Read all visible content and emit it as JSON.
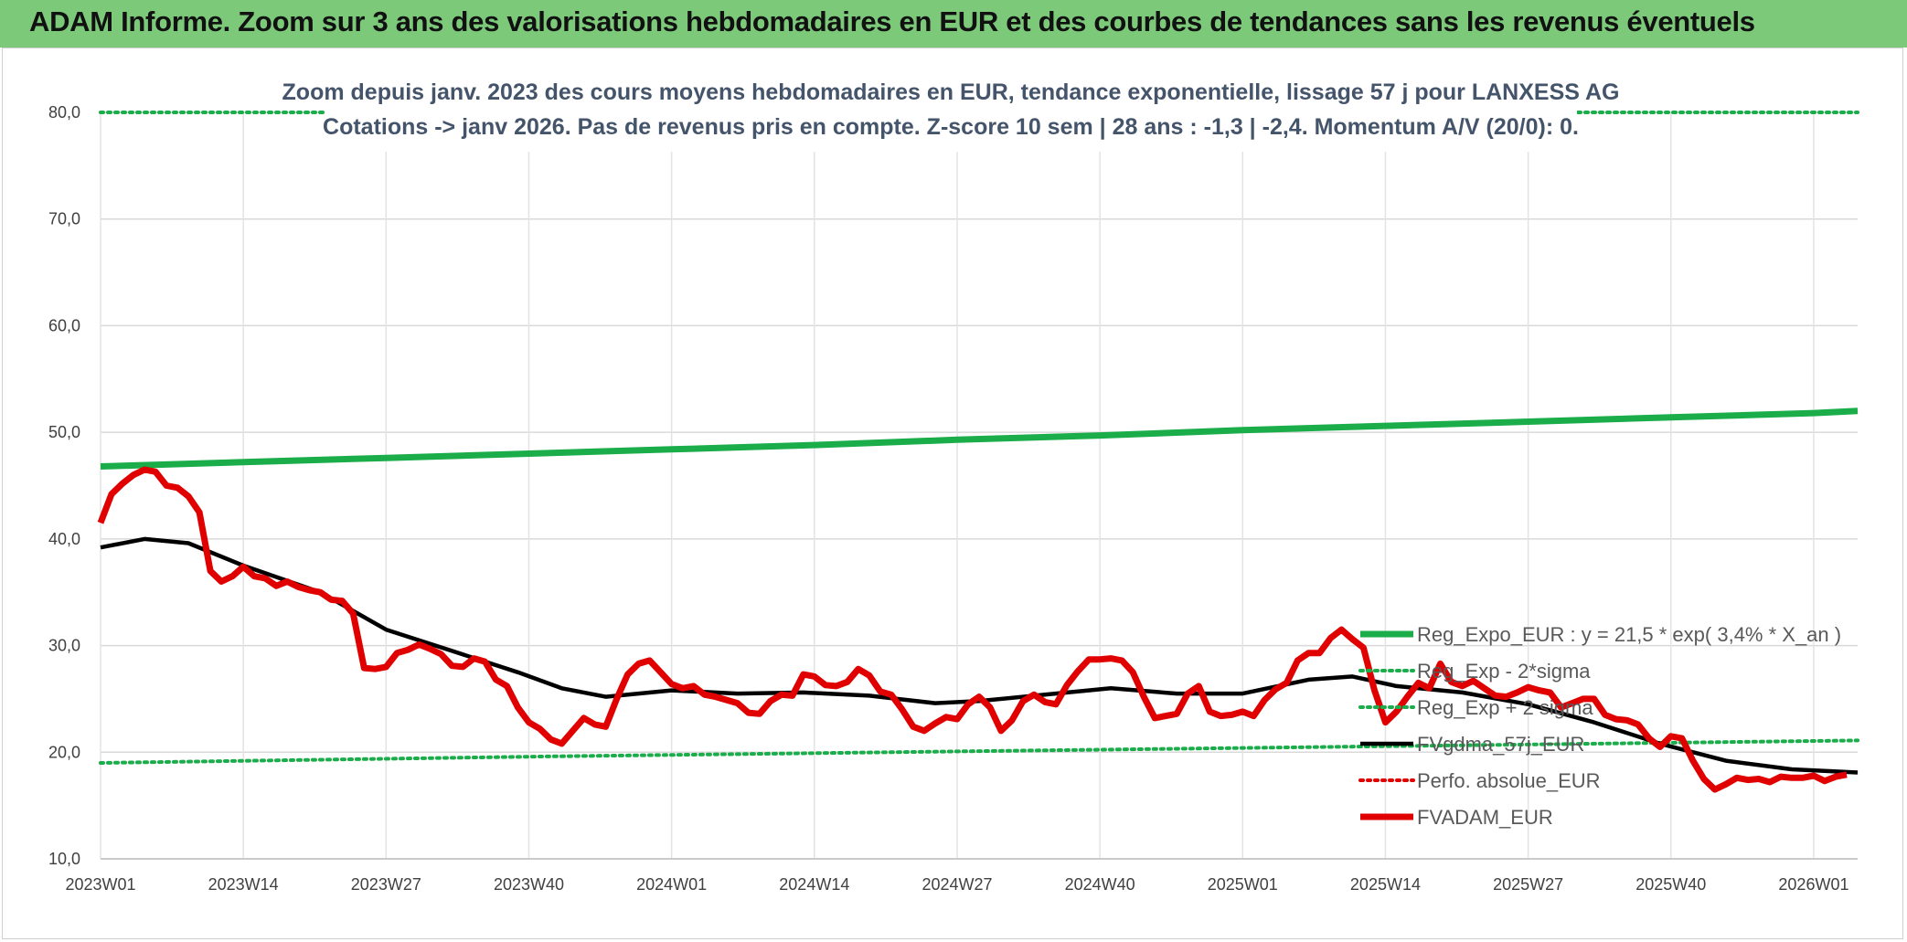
{
  "banner": {
    "title": "ADAM Informe. Zoom sur 3 ans des valorisations hebdomadaires en EUR et des courbes de tendances sans les revenus éventuels",
    "background": "#7cc97a"
  },
  "chart_data": {
    "type": "line",
    "title": "",
    "subtitle_lines": [
      "Zoom depuis janv. 2023 des cours moyens hebdomadaires en EUR, tendance exponentielle, lissage 57 j pour LANXESS AG",
      "Cotations -> janv 2026. Pas de revenus pris en compte. Z-score 10 sem | 28 ans : -1,3 | -2,4. Momentum A/V (20/0): 0."
    ],
    "xlabel": "",
    "ylabel": "",
    "ylim": [
      10,
      80
    ],
    "y_ticks": [
      "10,0",
      "20,0",
      "30,0",
      "40,0",
      "50,0",
      "60,0",
      "70,0",
      "80,0"
    ],
    "x_tick_labels": [
      "2023W01",
      "2023W14",
      "2023W27",
      "2023W40",
      "2024W01",
      "2024W14",
      "2024W27",
      "2024W40",
      "2025W01",
      "2025W14",
      "2025W27",
      "2025W40",
      "2026W01"
    ],
    "grid": true,
    "legend_position": "right",
    "series": [
      {
        "name": "Reg_Expo_EUR : y = 21,5 * exp( 3,4% *  X_an )",
        "color": "#1aad4a",
        "style": "solid-thick",
        "points": [
          [
            0,
            46.8
          ],
          [
            13,
            47.2
          ],
          [
            26,
            47.6
          ],
          [
            39,
            48.0
          ],
          [
            52,
            48.4
          ],
          [
            65,
            48.8
          ],
          [
            78,
            49.3
          ],
          [
            91,
            49.7
          ],
          [
            104,
            50.2
          ],
          [
            117,
            50.6
          ],
          [
            130,
            51.0
          ],
          [
            143,
            51.4
          ],
          [
            156,
            51.8
          ],
          [
            160,
            52.0
          ]
        ]
      },
      {
        "name": "Reg_Exp - 2*sigma",
        "color": "#1aad4a",
        "style": "dotted",
        "points": [
          [
            0,
            19.0
          ],
          [
            40,
            19.6
          ],
          [
            80,
            20.1
          ],
          [
            120,
            20.6
          ],
          [
            160,
            21.1
          ]
        ]
      },
      {
        "name": "Reg_Exp + 2 sigma",
        "color": "#1aad4a",
        "style": "dotted",
        "points": [
          [
            0,
            80.0
          ],
          [
            160,
            80.0
          ]
        ]
      },
      {
        "name": "FVgdma_57j_EUR",
        "color": "#000000",
        "style": "solid",
        "points": [
          [
            0,
            39.2
          ],
          [
            4,
            40.0
          ],
          [
            8,
            39.6
          ],
          [
            13,
            37.5
          ],
          [
            20,
            35.0
          ],
          [
            26,
            31.5
          ],
          [
            32,
            29.5
          ],
          [
            38,
            27.5
          ],
          [
            42,
            26.0
          ],
          [
            46,
            25.2
          ],
          [
            52,
            25.8
          ],
          [
            58,
            25.5
          ],
          [
            64,
            25.6
          ],
          [
            70,
            25.3
          ],
          [
            76,
            24.6
          ],
          [
            80,
            24.8
          ],
          [
            86,
            25.4
          ],
          [
            92,
            26.0
          ],
          [
            98,
            25.5
          ],
          [
            104,
            25.5
          ],
          [
            110,
            26.8
          ],
          [
            114,
            27.1
          ],
          [
            118,
            26.2
          ],
          [
            124,
            25.6
          ],
          [
            130,
            24.5
          ],
          [
            136,
            22.8
          ],
          [
            142,
            20.8
          ],
          [
            148,
            19.2
          ],
          [
            154,
            18.4
          ],
          [
            160,
            18.1
          ]
        ]
      },
      {
        "name": "Perfo. absolue_EUR",
        "color": "#e00000",
        "style": "dotted",
        "points": []
      },
      {
        "name": "FVADAM_EUR",
        "color": "#e00000",
        "style": "solid-thick",
        "points": [
          [
            0,
            41.5
          ],
          [
            1,
            44.2
          ],
          [
            2,
            45.2
          ],
          [
            3,
            46.0
          ],
          [
            4,
            46.5
          ],
          [
            5,
            46.3
          ],
          [
            6,
            45.0
          ],
          [
            7,
            44.8
          ],
          [
            8,
            44.0
          ],
          [
            9,
            42.5
          ],
          [
            10,
            37.0
          ],
          [
            11,
            36.0
          ],
          [
            12,
            36.5
          ],
          [
            13,
            37.4
          ],
          [
            14,
            36.5
          ],
          [
            15,
            36.3
          ],
          [
            16,
            35.6
          ],
          [
            17,
            36.0
          ],
          [
            18,
            35.5
          ],
          [
            19,
            35.2
          ],
          [
            20,
            35.0
          ],
          [
            21,
            34.3
          ],
          [
            22,
            34.2
          ],
          [
            23,
            33.0
          ],
          [
            24,
            27.9
          ],
          [
            25,
            27.8
          ],
          [
            26,
            28.0
          ],
          [
            27,
            29.3
          ],
          [
            28,
            29.6
          ],
          [
            29,
            30.1
          ],
          [
            30,
            29.7
          ],
          [
            31,
            29.2
          ],
          [
            32,
            28.1
          ],
          [
            33,
            28.0
          ],
          [
            34,
            28.8
          ],
          [
            35,
            28.5
          ],
          [
            36,
            26.8
          ],
          [
            37,
            26.2
          ],
          [
            38,
            24.2
          ],
          [
            39,
            22.8
          ],
          [
            40,
            22.2
          ],
          [
            41,
            21.2
          ],
          [
            42,
            20.8
          ],
          [
            43,
            22.0
          ],
          [
            44,
            23.2
          ],
          [
            45,
            22.6
          ],
          [
            46,
            22.4
          ],
          [
            47,
            25.0
          ],
          [
            48,
            27.3
          ],
          [
            49,
            28.3
          ],
          [
            50,
            28.6
          ],
          [
            51,
            27.5
          ],
          [
            52,
            26.4
          ],
          [
            53,
            26.0
          ],
          [
            54,
            26.2
          ],
          [
            55,
            25.4
          ],
          [
            56,
            25.2
          ],
          [
            57,
            24.9
          ],
          [
            58,
            24.6
          ],
          [
            59,
            23.7
          ],
          [
            60,
            23.6
          ],
          [
            61,
            24.8
          ],
          [
            62,
            25.4
          ],
          [
            63,
            25.3
          ],
          [
            64,
            27.3
          ],
          [
            65,
            27.1
          ],
          [
            66,
            26.3
          ],
          [
            67,
            26.2
          ],
          [
            68,
            26.6
          ],
          [
            69,
            27.8
          ],
          [
            70,
            27.2
          ],
          [
            71,
            25.7
          ],
          [
            72,
            25.4
          ],
          [
            73,
            24.0
          ],
          [
            74,
            22.4
          ],
          [
            75,
            22.0
          ],
          [
            76,
            22.7
          ],
          [
            77,
            23.3
          ],
          [
            78,
            23.1
          ],
          [
            79,
            24.5
          ],
          [
            80,
            25.2
          ],
          [
            81,
            24.2
          ],
          [
            82,
            22.0
          ],
          [
            83,
            23.0
          ],
          [
            84,
            24.8
          ],
          [
            85,
            25.4
          ],
          [
            86,
            24.7
          ],
          [
            87,
            24.5
          ],
          [
            88,
            26.3
          ],
          [
            89,
            27.6
          ],
          [
            90,
            28.7
          ],
          [
            91,
            28.7
          ],
          [
            92,
            28.8
          ],
          [
            93,
            28.6
          ],
          [
            94,
            27.5
          ],
          [
            95,
            25.2
          ],
          [
            96,
            23.2
          ],
          [
            97,
            23.4
          ],
          [
            98,
            23.6
          ],
          [
            99,
            25.5
          ],
          [
            100,
            26.2
          ],
          [
            101,
            23.8
          ],
          [
            102,
            23.4
          ],
          [
            103,
            23.5
          ],
          [
            104,
            23.8
          ],
          [
            105,
            23.4
          ],
          [
            106,
            24.9
          ],
          [
            107,
            25.9
          ],
          [
            108,
            26.5
          ],
          [
            109,
            28.6
          ],
          [
            110,
            29.3
          ],
          [
            111,
            29.3
          ],
          [
            112,
            30.7
          ],
          [
            113,
            31.5
          ],
          [
            114,
            30.6
          ],
          [
            115,
            29.8
          ],
          [
            116,
            25.8
          ],
          [
            117,
            22.8
          ],
          [
            118,
            23.8
          ],
          [
            119,
            25.2
          ],
          [
            120,
            26.5
          ],
          [
            121,
            26.0
          ],
          [
            122,
            28.3
          ],
          [
            123,
            26.6
          ],
          [
            124,
            26.2
          ],
          [
            125,
            26.7
          ],
          [
            126,
            26.0
          ],
          [
            127,
            25.3
          ],
          [
            128,
            25.2
          ],
          [
            129,
            25.6
          ],
          [
            130,
            26.1
          ],
          [
            131,
            25.8
          ],
          [
            132,
            25.6
          ],
          [
            133,
            24.2
          ],
          [
            134,
            24.6
          ],
          [
            135,
            25.0
          ],
          [
            136,
            25.0
          ],
          [
            137,
            23.5
          ],
          [
            138,
            23.1
          ],
          [
            139,
            23.0
          ],
          [
            140,
            22.6
          ],
          [
            141,
            21.3
          ],
          [
            142,
            20.5
          ],
          [
            143,
            21.5
          ],
          [
            144,
            21.3
          ],
          [
            145,
            19.2
          ],
          [
            146,
            17.5
          ],
          [
            147,
            16.5
          ],
          [
            148,
            17.0
          ],
          [
            149,
            17.6
          ],
          [
            150,
            17.4
          ],
          [
            151,
            17.5
          ],
          [
            152,
            17.2
          ],
          [
            153,
            17.7
          ],
          [
            154,
            17.6
          ],
          [
            155,
            17.6
          ],
          [
            156,
            17.8
          ],
          [
            157,
            17.3
          ],
          [
            158,
            17.7
          ],
          [
            159,
            17.9
          ]
        ]
      }
    ]
  }
}
